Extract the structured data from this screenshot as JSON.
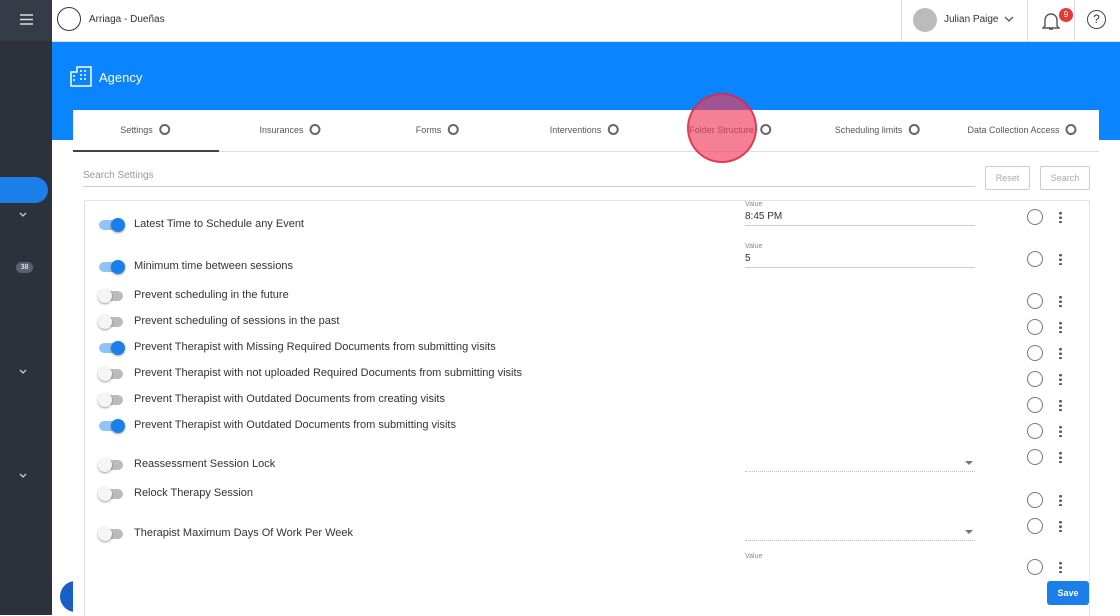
{
  "header": {
    "org": "Arriaga - Dueñas",
    "user": "Julian Paige",
    "notifications": 9
  },
  "sidebar": {
    "badge": 38
  },
  "page": {
    "title": "Agency"
  },
  "tabs": [
    "Settings",
    "Insurances",
    "Forms",
    "Interventions",
    "Folder Structure",
    "Scheduling limits",
    "Data Collection Access"
  ],
  "search": {
    "placeholder": "Search Settings",
    "reset": "Reset",
    "search": "Search"
  },
  "settings": [
    {
      "label": "Latest Time to Schedule any Event",
      "on": true,
      "field": "text",
      "field_label": "Value",
      "value": "8:45 PM"
    },
    {
      "label": "Minimum time between sessions",
      "on": true,
      "field": "text",
      "field_label": "Value",
      "value": "5"
    },
    {
      "label": "Prevent scheduling in the future",
      "on": false
    },
    {
      "label": "Prevent scheduling of sessions in the past",
      "on": false
    },
    {
      "label": "Prevent Therapist with Missing Required Documents from submitting visits",
      "on": true
    },
    {
      "label": "Prevent Therapist with not uploaded Required Documents from submitting visits",
      "on": false
    },
    {
      "label": "Prevent Therapist with Outdated Documents from creating visits",
      "on": false
    },
    {
      "label": "Prevent Therapist with Outdated Documents from submitting visits",
      "on": true
    },
    {
      "label": "Reassessment Session Lock",
      "on": false,
      "field": "select"
    },
    {
      "label": "Relock Therapy Session",
      "on": false
    },
    {
      "label": "Therapist Maximum Days Of Work Per Week",
      "on": false,
      "field": "select"
    },
    {
      "field": "text",
      "field_label": "Value"
    }
  ],
  "save": "Save"
}
